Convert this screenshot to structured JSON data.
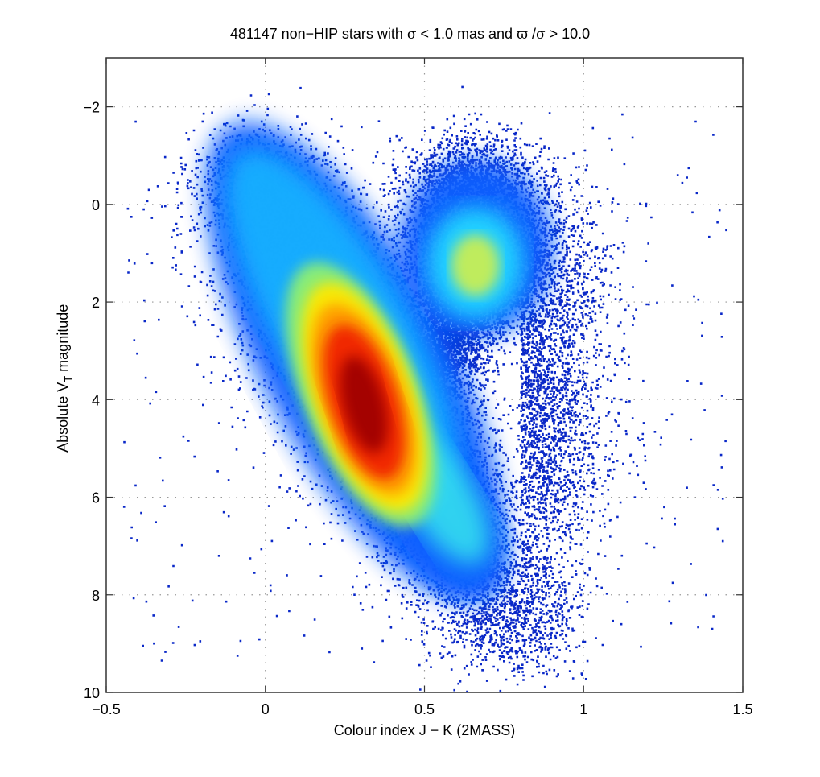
{
  "chart_data": {
    "type": "scatter",
    "subtype": "density-colored scatter (Hertzsprung–Russell diagram)",
    "title_parts": {
      "count": "481147",
      "text1": " non−HIP stars with ",
      "sigma": "σ",
      "text2": " < 1.0 mas and ",
      "varpi": "ϖ",
      "text3": " /",
      "sigma2": "σ",
      "text4": " > 10.0"
    },
    "title": "481147 non−HIP stars with σ < 1.0 mas and ϖ /σ > 10.0",
    "xlabel": "Colour index J − K (2MASS)",
    "ylabel_main": "Absolute V",
    "ylabel_sub": "T",
    "ylabel_tail": " magnitude",
    "ylabel": "Absolute V_T magnitude",
    "xlim": [
      -0.5,
      1.5
    ],
    "ylim": [
      -3,
      10
    ],
    "y_inverted": true,
    "xticks": [
      "−0.5",
      "0",
      "0.5",
      "1",
      "1.5"
    ],
    "xtick_values": [
      -0.5,
      0,
      0.5,
      1,
      1.5
    ],
    "yticks": [
      "−2",
      "0",
      "2",
      "4",
      "6",
      "8",
      "10"
    ],
    "ytick_values": [
      -2,
      0,
      2,
      4,
      6,
      8,
      10
    ],
    "grid": "dotted",
    "colormap": "jet",
    "n_points": 481147,
    "features": [
      {
        "name": "main sequence peak",
        "x": 0.31,
        "y": 4.1,
        "density": "max (dark red)"
      },
      {
        "name": "main sequence upper",
        "x": 0.05,
        "y": 0.5,
        "density": "medium (cyan)"
      },
      {
        "name": "main sequence lower",
        "x": 0.6,
        "y": 6.8,
        "density": "low-medium (cyan/blue)"
      },
      {
        "name": "red clump",
        "x": 0.65,
        "y": 1.2,
        "density": "medium (yellow-green)"
      },
      {
        "name": "giant branch",
        "x": 0.75,
        "y": 0.2,
        "density": "low (blue)"
      }
    ]
  }
}
